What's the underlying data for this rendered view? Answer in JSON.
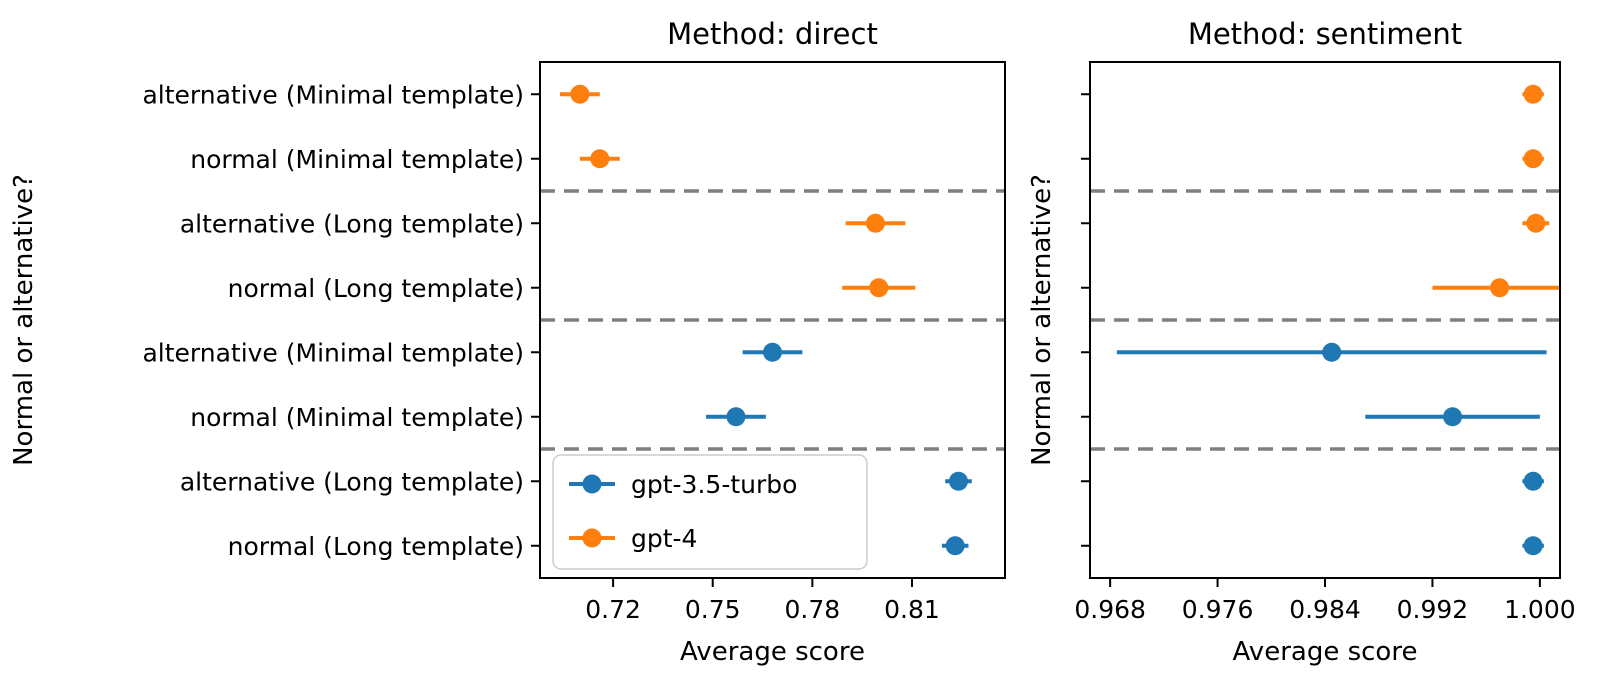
{
  "figure": {
    "background": "#ffffff",
    "description": "Two-panel horizontal error-bar (point) plot comparing gpt-3.5-turbo and gpt-4 average scores"
  },
  "colors": {
    "gpt35_turbo": "#1f77b4",
    "gpt4": "#ff7f0e",
    "separator": "#7f7f7f",
    "axis": "#000000",
    "legend_border": "#cccccc",
    "legend_bg": "#ffffff"
  },
  "series_colors": {
    "gpt-3.5-turbo": "#1f77b4",
    "gpt-4": "#ff7f0e"
  },
  "legend": {
    "entries": [
      {
        "label": "gpt-3.5-turbo",
        "color": "#1f77b4"
      },
      {
        "label": "gpt-4",
        "color": "#ff7f0e"
      }
    ]
  },
  "chart_data": [
    {
      "type": "scatter",
      "title": "Method: direct",
      "xlabel": "Average score",
      "ylabel": "Normal or alternative?",
      "xlim": [
        0.698,
        0.838
      ],
      "xticks": [
        0.72,
        0.75,
        0.78,
        0.81
      ],
      "xtick_labels": [
        "0.72",
        "0.75",
        "0.78",
        "0.81"
      ],
      "categories": [
        "alternative (Minimal template)",
        "normal (Minimal template)",
        "alternative (Long template)",
        "normal (Long template)",
        "alternative (Minimal template)",
        "normal (Minimal template)",
        "alternative (Long template)",
        "normal (Long template)"
      ],
      "show_category_labels": true,
      "separators_after": [
        1,
        3,
        5
      ],
      "points": [
        {
          "row": 0,
          "series": "gpt-4",
          "value": 0.71,
          "err": 0.006
        },
        {
          "row": 1,
          "series": "gpt-4",
          "value": 0.716,
          "err": 0.006
        },
        {
          "row": 2,
          "series": "gpt-4",
          "value": 0.799,
          "err": 0.009
        },
        {
          "row": 3,
          "series": "gpt-4",
          "value": 0.8,
          "err": 0.011
        },
        {
          "row": 4,
          "series": "gpt-3.5-turbo",
          "value": 0.768,
          "err": 0.009
        },
        {
          "row": 5,
          "series": "gpt-3.5-turbo",
          "value": 0.757,
          "err": 0.009
        },
        {
          "row": 6,
          "series": "gpt-3.5-turbo",
          "value": 0.824,
          "err": 0.004
        },
        {
          "row": 7,
          "series": "gpt-3.5-turbo",
          "value": 0.823,
          "err": 0.004
        }
      ],
      "show_legend": true,
      "legend_position": "lower left"
    },
    {
      "type": "scatter",
      "title": "Method: sentiment",
      "xlabel": "Average score",
      "ylabel": "Normal or alternative?",
      "xlim": [
        0.9665,
        1.0015
      ],
      "xticks": [
        0.968,
        0.976,
        0.984,
        0.992,
        1.0
      ],
      "xtick_labels": [
        "0.968",
        "0.976",
        "0.984",
        "0.992",
        "1.000"
      ],
      "categories": [
        "alternative (Minimal template)",
        "normal (Minimal template)",
        "alternative (Long template)",
        "normal (Long template)",
        "alternative (Minimal template)",
        "normal (Minimal template)",
        "alternative (Long template)",
        "normal (Long template)"
      ],
      "show_category_labels": false,
      "separators_after": [
        1,
        3,
        5
      ],
      "points": [
        {
          "row": 0,
          "series": "gpt-4",
          "value": 0.9995,
          "err": 0.0008
        },
        {
          "row": 1,
          "series": "gpt-4",
          "value": 0.9995,
          "err": 0.0008
        },
        {
          "row": 2,
          "series": "gpt-4",
          "value": 0.9997,
          "err": 0.001
        },
        {
          "row": 3,
          "series": "gpt-4",
          "value": 0.997,
          "err": 0.005
        },
        {
          "row": 4,
          "series": "gpt-3.5-turbo",
          "value": 0.9845,
          "err": 0.016
        },
        {
          "row": 5,
          "series": "gpt-3.5-turbo",
          "value": 0.9935,
          "err": 0.0065
        },
        {
          "row": 6,
          "series": "gpt-3.5-turbo",
          "value": 0.9995,
          "err": 0.0008
        },
        {
          "row": 7,
          "series": "gpt-3.5-turbo",
          "value": 0.9995,
          "err": 0.0008
        }
      ],
      "show_legend": false,
      "legend_position": null
    }
  ]
}
